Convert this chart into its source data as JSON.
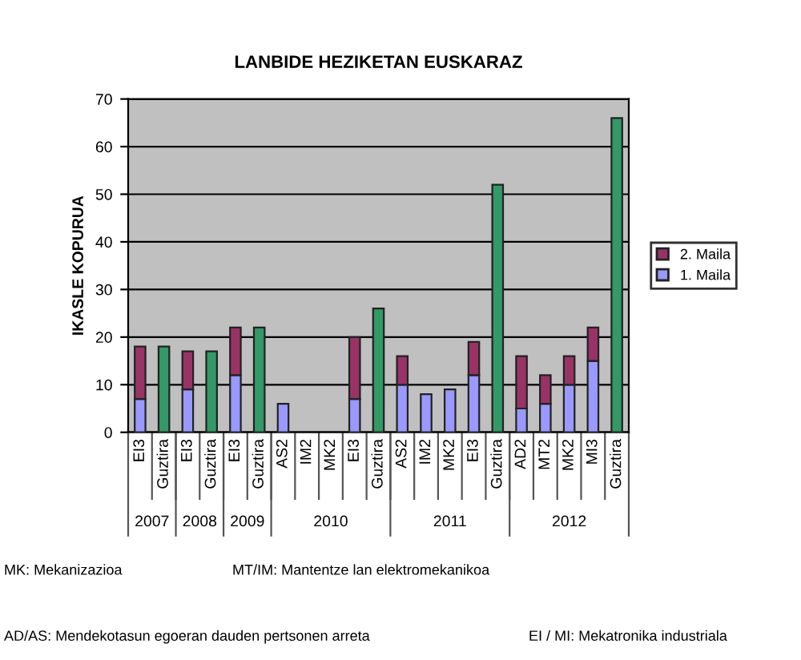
{
  "chart_data": {
    "type": "bar",
    "title": "LANBIDE HEZIKETAN EUSKARAZ",
    "ylabel": "IKASLE KOPURUA",
    "categories": [
      "EI3",
      "Guztira",
      "EI3",
      "Guztira",
      "EI3",
      "Guztira",
      "AS2",
      "IM2",
      "MK2",
      "EI3",
      "Guztira",
      "AS2",
      "IM2",
      "MK2",
      "EI3",
      "Guztira",
      "AD2",
      "MT2",
      "MK2",
      "MI3",
      "Guztira"
    ],
    "stacked": true,
    "series": [
      {
        "name": "1. Maila",
        "color": "#9999ff",
        "values": [
          7,
          null,
          9,
          null,
          12,
          null,
          6,
          null,
          null,
          7,
          null,
          10,
          8,
          9,
          12,
          null,
          5,
          6,
          10,
          15,
          null
        ]
      },
      {
        "name": "2. Maila",
        "color": "#993366",
        "values": [
          11,
          null,
          8,
          null,
          10,
          null,
          null,
          null,
          null,
          13,
          null,
          6,
          null,
          null,
          7,
          null,
          11,
          6,
          6,
          7,
          null
        ]
      },
      {
        "color": "#339966",
        "values": [
          null,
          18,
          null,
          17,
          null,
          22,
          null,
          null,
          null,
          null,
          26,
          null,
          null,
          null,
          null,
          52,
          null,
          null,
          null,
          null,
          66
        ]
      }
    ],
    "ylim": [
      0,
      70
    ],
    "yticks": [
      0,
      10,
      20,
      30,
      40,
      50,
      60,
      70
    ],
    "grid": "y",
    "legend": "right",
    "annotations": [
      "2007",
      "2008",
      "2009",
      "2010",
      "2011",
      "2012",
      "MK: Mekanizazioa",
      "MT/IM: Mantentze lan elektromekanikoa",
      "AD/AS: Mendekotasun egoeran dauden pertsonen arreta",
      "EI / MI: Mekatronika industriala"
    ]
  }
}
